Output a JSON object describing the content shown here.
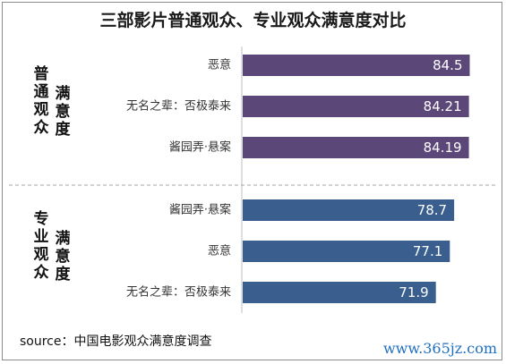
{
  "chart_data": {
    "type": "bar",
    "orientation": "horizontal",
    "title": "三部影片普通观众、专业观众满意度对比",
    "groups": [
      {
        "name_parts": [
          "普通观众",
          "满意度"
        ],
        "color": "#5b4778",
        "categories": [
          "恶意",
          "无名之辈：否极泰来",
          "酱园弄·悬案"
        ],
        "values": [
          84.5,
          84.21,
          84.19
        ],
        "labels": [
          "84.5",
          "84.21",
          "84.19"
        ]
      },
      {
        "name_parts": [
          "专业观众",
          "满意度"
        ],
        "color": "#3a5f8f",
        "categories": [
          "酱园弄·悬案",
          "恶意",
          "无名之辈：否极泰来"
        ],
        "values": [
          78.7,
          77.1,
          71.9
        ],
        "labels": [
          "78.7",
          "77.1",
          "71.9"
        ]
      }
    ],
    "grid": false,
    "legend": "none"
  },
  "source": "source：中国电影观众满意度调查",
  "watermark": "www.365jz.com"
}
